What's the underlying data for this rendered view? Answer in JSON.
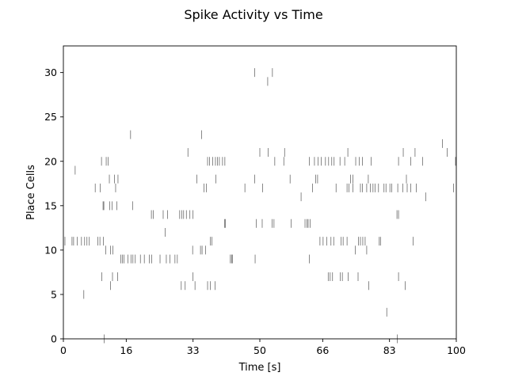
{
  "chart_data": {
    "type": "scatter",
    "title": "Spike Activity vs Time",
    "xlabel": "Time [s]",
    "ylabel": "Place Cells",
    "xlim": [
      0,
      100
    ],
    "ylim": [
      0,
      33
    ],
    "xticks": [
      0,
      16,
      33,
      50,
      66,
      83,
      100
    ],
    "yticks": [
      0,
      5,
      10,
      15,
      20,
      25,
      30
    ],
    "grid": false,
    "colors": {
      "spike": "#555555",
      "axis": "#000000"
    },
    "series": [
      {
        "cell": 0,
        "times": [
          10.4,
          85.0
        ]
      },
      {
        "cell": 3,
        "times": [
          82.3
        ]
      },
      {
        "cell": 5,
        "times": [
          5.2
        ]
      },
      {
        "cell": 6,
        "times": [
          12.0,
          30.0,
          31.0,
          33.5,
          36.7,
          37.4,
          38.6,
          77.7,
          87.0
        ]
      },
      {
        "cell": 7,
        "times": [
          9.8,
          12.5,
          13.8,
          33.0,
          67.4,
          67.9,
          68.5,
          70.5,
          71.0,
          72.5,
          75.0,
          85.3
        ]
      },
      {
        "cell": 9,
        "times": [
          14.6,
          15.0,
          15.4,
          16.4,
          17.2,
          17.7,
          18.3,
          19.6,
          20.6,
          21.9,
          22.5,
          24.6,
          26.2,
          27.1,
          28.4,
          29.0,
          42.5,
          42.8,
          43.0,
          48.8,
          62.6
        ]
      },
      {
        "cell": 10,
        "times": [
          10.8,
          12.0,
          12.6,
          32.9,
          34.9,
          35.3,
          36.2,
          74.3,
          77.2
        ]
      },
      {
        "cell": 11,
        "times": [
          0.4,
          2.2,
          2.6,
          3.5,
          4.6,
          5.4,
          6.0,
          6.6,
          8.8,
          9.3,
          10.2,
          37.4,
          37.8,
          65.3,
          66.1,
          67.0,
          68.1,
          68.8,
          70.7,
          71.2,
          72.2,
          75.1,
          75.6,
          76.2,
          76.8,
          80.4,
          80.7,
          89.0
        ]
      },
      {
        "cell": 12,
        "times": [
          25.9
        ]
      },
      {
        "cell": 13,
        "times": [
          41.0,
          41.2,
          49.1,
          50.6,
          53.1,
          53.6,
          58.0,
          61.5,
          62.0,
          62.3,
          62.8
        ]
      },
      {
        "cell": 14,
        "times": [
          22.4,
          22.9,
          25.4,
          26.5,
          29.6,
          30.1,
          30.6,
          31.3,
          32.2,
          33.0,
          84.9,
          85.3
        ]
      },
      {
        "cell": 15,
        "times": [
          10.1,
          10.3,
          11.8,
          12.4,
          13.6,
          17.6
        ]
      },
      {
        "cell": 16,
        "times": [
          60.5,
          92.2
        ]
      },
      {
        "cell": 17,
        "times": [
          8.1,
          9.4,
          13.3,
          35.8,
          36.4,
          46.2,
          50.7,
          63.4,
          69.4,
          72.2,
          72.7,
          73.7,
          75.6,
          76.1,
          77.2,
          78.1,
          78.8,
          79.3,
          80.2,
          81.6,
          82.1,
          83.1,
          83.6,
          85.1,
          86.4,
          87.5,
          88.4,
          89.8,
          99.3
        ]
      },
      {
        "cell": 18,
        "times": [
          11.7,
          13.0,
          13.9,
          34.0,
          38.8,
          48.7,
          57.7,
          64.2,
          64.7,
          73.1,
          73.7,
          77.6,
          87.3
        ]
      },
      {
        "cell": 19,
        "times": [
          3.0
        ]
      },
      {
        "cell": 20,
        "times": [
          9.7,
          10.9,
          11.4,
          36.7,
          37.2,
          38.0,
          38.7,
          39.2,
          39.7,
          40.5,
          41.1,
          53.8,
          56.1,
          62.6,
          63.9,
          64.8,
          65.6,
          66.7,
          67.5,
          68.3,
          68.9,
          70.4,
          71.6,
          74.4,
          75.3,
          76.1,
          78.3,
          85.3,
          88.4,
          91.4,
          99.8
        ]
      },
      {
        "cell": 21,
        "times": [
          31.7,
          50.0,
          52.1,
          56.3,
          72.4,
          86.5,
          89.5,
          97.7
        ]
      },
      {
        "cell": 22,
        "times": [
          96.5
        ]
      },
      {
        "cell": 23,
        "times": [
          17.1,
          35.2
        ]
      },
      {
        "cell": 29,
        "times": [
          52.0
        ]
      },
      {
        "cell": 30,
        "times": [
          48.7,
          53.2
        ]
      }
    ]
  }
}
